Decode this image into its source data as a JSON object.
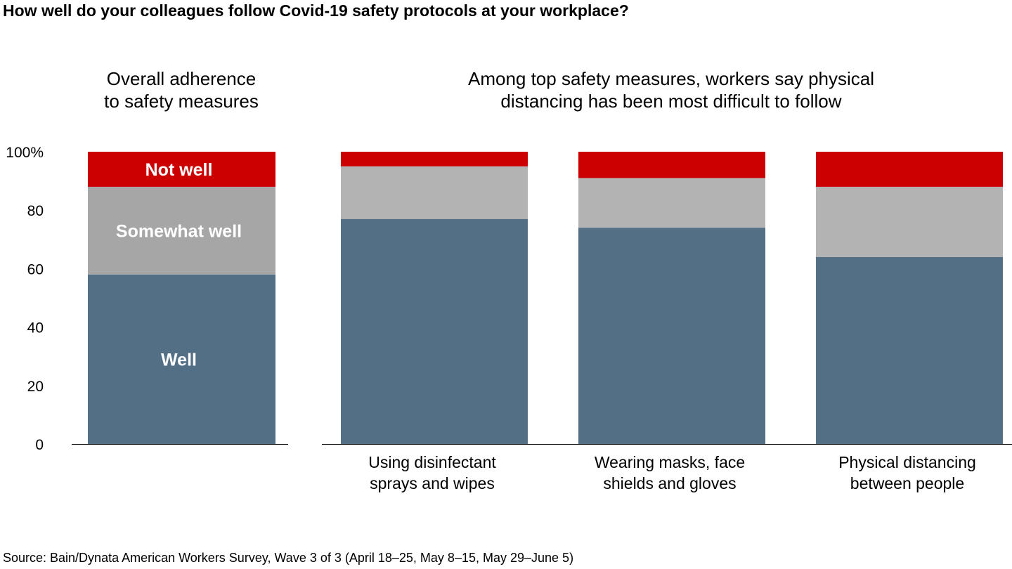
{
  "title": "How well do your colleagues follow Covid-19 safety protocols at your workplace?",
  "source": "Source: Bain/Dynata American Workers Survey, Wave 3 of 3 (April 18–25, May 8–15, May 29–June 5)",
  "colors": {
    "well": "#536f86",
    "somewhat_well": "#a6a6a6",
    "somewhat_well_light": "#b3b3b3",
    "not_well": "#cc0000",
    "axis": "#000000"
  },
  "chart_data": [
    {
      "type": "bar",
      "stacked": true,
      "subtitle_lines": [
        "Overall adherence",
        "to safety measures"
      ],
      "categories": [
        ""
      ],
      "series": [
        {
          "name": "Well",
          "values": [
            58
          ]
        },
        {
          "name": "Somewhat well",
          "values": [
            30
          ]
        },
        {
          "name": "Not well",
          "values": [
            12
          ]
        }
      ],
      "ylim": [
        0,
        100
      ],
      "yticks": [
        "0",
        "20",
        "40",
        "60",
        "80",
        "100%"
      ],
      "legend": "inside-bars"
    },
    {
      "type": "bar",
      "stacked": true,
      "subtitle_lines": [
        "Among top safety measures, workers say physical",
        "distancing has been most difficult to follow"
      ],
      "categories": [
        [
          "Using disinfectant",
          "sprays and wipes"
        ],
        [
          "Wearing masks, face",
          "shields and gloves"
        ],
        [
          "Physical distancing",
          "between people"
        ]
      ],
      "series": [
        {
          "name": "Well",
          "values": [
            77,
            74,
            64
          ]
        },
        {
          "name": "Somewhat well",
          "values": [
            18,
            17,
            24
          ]
        },
        {
          "name": "Not well",
          "values": [
            5,
            9,
            12
          ]
        }
      ],
      "ylim": [
        0,
        100
      ]
    }
  ]
}
